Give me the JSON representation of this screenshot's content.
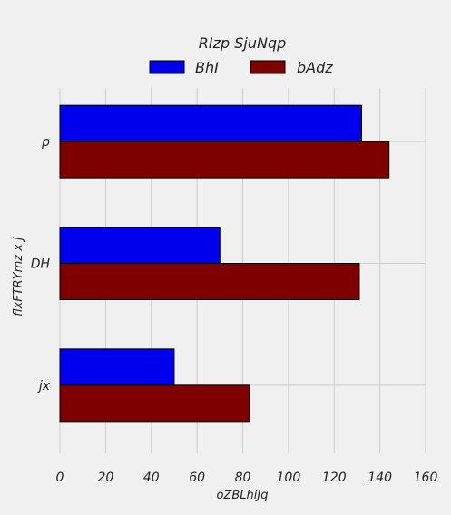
{
  "chart_data": {
    "type": "bar",
    "orientation": "horizontal",
    "categories": [
      "p",
      "DH",
      "jx"
    ],
    "series": [
      {
        "name": "BhI",
        "values": [
          132,
          70,
          50
        ],
        "color": "#0000ee"
      },
      {
        "name": "bAdz",
        "values": [
          144,
          131,
          83
        ],
        "color": "#7f0000"
      }
    ],
    "xlabel": "oZBLhiJq",
    "ylabel": "flxFTRYmz x J",
    "xlim": [
      0,
      160
    ],
    "xticks": [
      "0",
      "20",
      "40",
      "60",
      "80",
      "100",
      "120",
      "140",
      "160"
    ],
    "legend": {
      "title": "RIzp SjuNqp",
      "placement": "top-center"
    },
    "grid": true,
    "background": "#f0f0f0",
    "grid_color": "#cbcbcb"
  }
}
